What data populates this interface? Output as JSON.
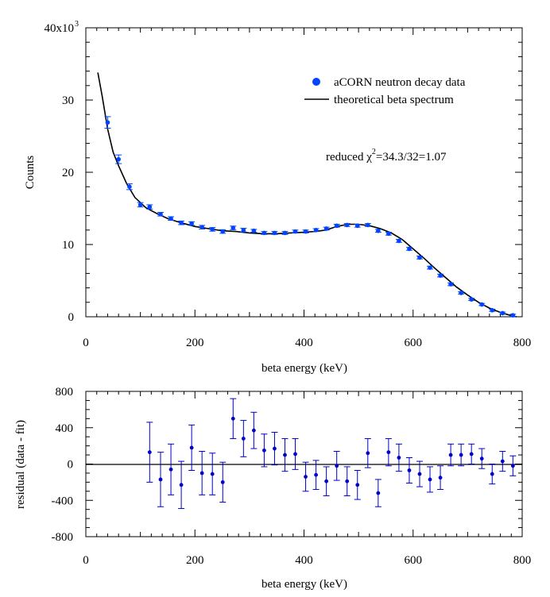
{
  "chart_data": [
    {
      "type": "scatter",
      "xlabel": "beta energy (keV)",
      "ylabel": "Counts",
      "xlim": [
        0,
        800
      ],
      "ylim": [
        0,
        40000
      ],
      "x_ticks": [
        "0",
        "200",
        "400",
        "600",
        "800"
      ],
      "y_ticks": [
        "0",
        "10",
        "20",
        "30",
        "40x10"
      ],
      "y_exponent": "3",
      "grid": false,
      "legend_position": "top-right",
      "annotation": {
        "prefix": "reduced χ",
        "sup": "2",
        "suffix": "=34.3/32=1.07"
      },
      "series": [
        {
          "name": "aCORN neutron decay data",
          "kind": "points",
          "x": [
            40,
            60,
            80,
            100,
            117,
            137,
            156,
            175,
            194,
            213,
            232,
            251,
            270,
            289,
            308,
            327,
            346,
            365,
            384,
            403,
            422,
            441,
            460,
            479,
            498,
            517,
            536,
            555,
            574,
            593,
            612,
            631,
            650,
            669,
            688,
            707,
            726,
            745,
            764,
            783
          ],
          "y": [
            26900,
            21800,
            18000,
            15500,
            15200,
            14200,
            13600,
            13000,
            12900,
            12400,
            12100,
            11800,
            12300,
            12000,
            11900,
            11600,
            11600,
            11600,
            11800,
            11800,
            12000,
            12200,
            12600,
            12700,
            12600,
            12700,
            11900,
            11500,
            10500,
            9400,
            8200,
            6800,
            5700,
            4500,
            3300,
            2400,
            1700,
            900,
            500,
            200
          ],
          "err": [
            800,
            600,
            400,
            300,
            300,
            250,
            250,
            250,
            250,
            250,
            250,
            250,
            250,
            250,
            200,
            200,
            200,
            200,
            200,
            200,
            200,
            200,
            200,
            200,
            200,
            200,
            200,
            200,
            200,
            200,
            200,
            200,
            200,
            200,
            150,
            150,
            150,
            150,
            150,
            150
          ],
          "color": "#0044ff"
        },
        {
          "name": "theoretical beta spectrum",
          "kind": "line",
          "x": [
            22,
            30,
            40,
            50,
            60,
            75,
            90,
            110,
            130,
            150,
            175,
            200,
            225,
            250,
            275,
            300,
            325,
            350,
            375,
            400,
            420,
            440,
            460,
            480,
            500,
            520,
            540,
            560,
            580,
            600,
            620,
            640,
            660,
            680,
            700,
            720,
            740,
            760,
            780,
            790
          ],
          "y": [
            33800,
            30500,
            26000,
            22800,
            20900,
            18400,
            16500,
            15100,
            14300,
            13600,
            13000,
            12500,
            12200,
            11900,
            11800,
            11600,
            11500,
            11500,
            11600,
            11700,
            11800,
            12000,
            12500,
            12800,
            12800,
            12600,
            12200,
            11600,
            10700,
            9400,
            8100,
            6700,
            5400,
            4100,
            3000,
            2000,
            1200,
            600,
            150,
            0
          ],
          "color": "#000000"
        }
      ]
    },
    {
      "type": "scatter",
      "xlabel": "beta energy (keV)",
      "ylabel": "residual (data - fit)",
      "xlim": [
        0,
        800
      ],
      "ylim": [
        -800,
        800
      ],
      "x_ticks": [
        "0",
        "200",
        "400",
        "600",
        "800"
      ],
      "y_ticks": [
        "-800",
        "-400",
        "0",
        "400",
        "800"
      ],
      "zero_line": 0,
      "grid": false,
      "series": [
        {
          "kind": "points",
          "x": [
            117,
            137,
            156,
            175,
            194,
            213,
            232,
            251,
            270,
            289,
            308,
            327,
            346,
            365,
            384,
            403,
            422,
            441,
            460,
            479,
            498,
            517,
            536,
            555,
            574,
            593,
            612,
            631,
            650,
            669,
            688,
            707,
            726,
            745,
            764,
            783
          ],
          "y": [
            130,
            -170,
            -60,
            -230,
            180,
            -100,
            -110,
            -200,
            500,
            280,
            370,
            150,
            170,
            100,
            110,
            -140,
            -120,
            -190,
            -20,
            -190,
            -230,
            120,
            -320,
            130,
            70,
            -70,
            -110,
            -170,
            -150,
            100,
            100,
            110,
            60,
            -110,
            30,
            -20
          ],
          "err": [
            330,
            300,
            280,
            260,
            250,
            240,
            230,
            220,
            220,
            200,
            200,
            180,
            180,
            180,
            170,
            160,
            160,
            160,
            160,
            160,
            160,
            160,
            150,
            150,
            150,
            140,
            140,
            140,
            130,
            120,
            120,
            110,
            110,
            110,
            110,
            110
          ],
          "color": "#0000cc"
        }
      ]
    }
  ]
}
